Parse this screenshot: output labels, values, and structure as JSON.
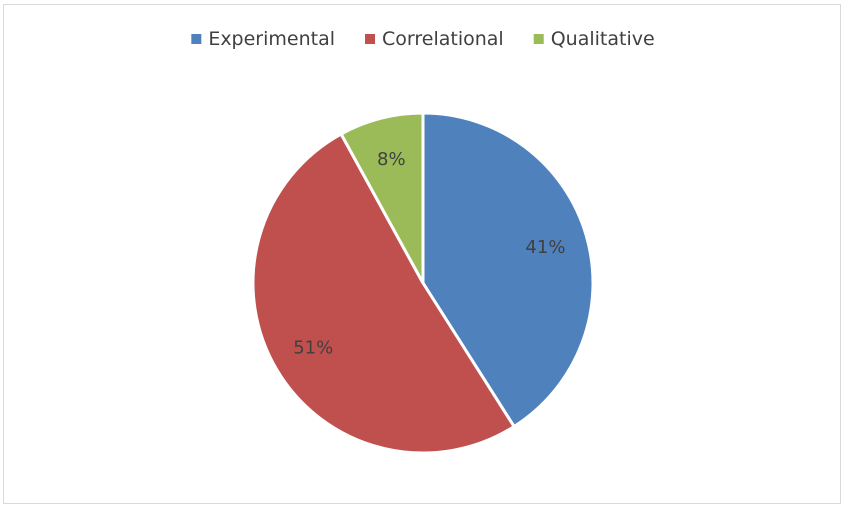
{
  "chart_data": {
    "type": "pie",
    "categories": [
      "Experimental",
      "Correlational",
      "Qualitative"
    ],
    "values": [
      41,
      51,
      8
    ],
    "data_labels": [
      "41%",
      "51%",
      "8%"
    ],
    "colors": [
      "#4f81bd",
      "#c0504d",
      "#9bbb59"
    ],
    "legend_position": "top",
    "start_angle_deg": 0,
    "direction": "clockwise"
  }
}
